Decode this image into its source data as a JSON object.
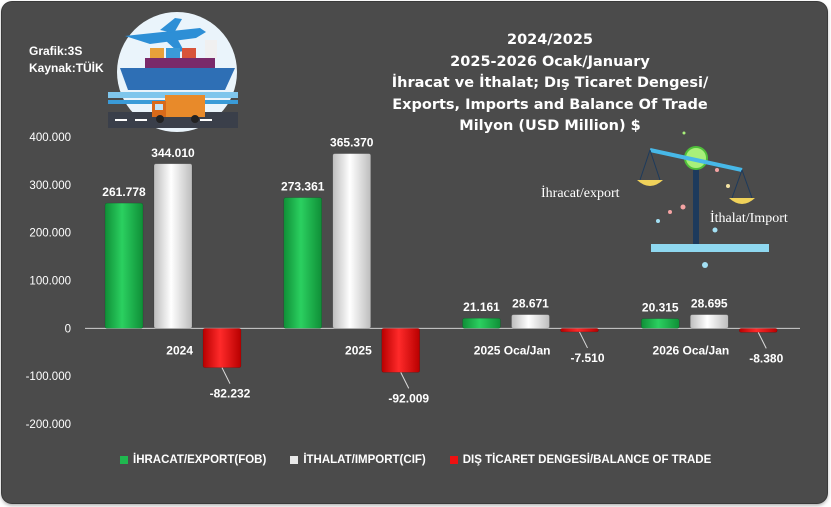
{
  "meta": {
    "graph_label": "Grafik:3S",
    "source_label": "Kaynak:TÜİK"
  },
  "title_lines": [
    "2024/2025",
    "2025-2026 Ocak/January",
    "İhracat ve İthalat; Dış Ticaret Dengesi/",
    "Exports, Imports and Balance Of Trade",
    "Milyon (USD Million) $"
  ],
  "scale_labels": {
    "export": "İhracat/export",
    "import": "İthalat/Import"
  },
  "colors": {
    "export": "#1fb84f",
    "import": "#e9e9e9",
    "balance": "#ee1111",
    "background": "#4b4b4b"
  },
  "legend": [
    {
      "key": "export",
      "label": "İHRACAT/EXPORT(FOB)"
    },
    {
      "key": "import",
      "label": "İTHALAT/IMPORT(CIF)"
    },
    {
      "key": "balance",
      "label": "DIŞ TİCARET DENGESİ/BALANCE OF TRADE"
    }
  ],
  "chart_data": {
    "type": "bar",
    "title": "Exports, Imports and Balance Of Trade",
    "ylabel": "Milyon (USD Million) $",
    "ylim": [
      -200000,
      400000
    ],
    "yticks": [
      400000,
      300000,
      200000,
      100000,
      0,
      -100000,
      -200000
    ],
    "ytick_labels": [
      "400.000",
      "300.000",
      "200.000",
      "100.000",
      "0",
      "-100.000",
      "-200.000"
    ],
    "categories": [
      "2024",
      "2025",
      "2025 Oca/Jan",
      "2026 Oca/Jan"
    ],
    "series": [
      {
        "key": "export",
        "name": "İHRACAT/EXPORT(FOB)",
        "values": [
          261778,
          273361,
          21161,
          20315
        ],
        "labels": [
          "261.778",
          "273.361",
          "21.161",
          "20.315"
        ]
      },
      {
        "key": "import",
        "name": "İTHALAT/IMPORT(CIF)",
        "values": [
          344010,
          365370,
          28671,
          28695
        ],
        "labels": [
          "344.010",
          "365.370",
          "28.671",
          "28.695"
        ]
      },
      {
        "key": "balance",
        "name": "DIŞ TİCARET DENGESİ/BALANCE OF TRADE",
        "values": [
          -82232,
          -92009,
          -7510,
          -8380
        ],
        "labels": [
          "-82.232",
          "-92.009",
          "-7.510",
          "-8.380"
        ]
      }
    ]
  }
}
